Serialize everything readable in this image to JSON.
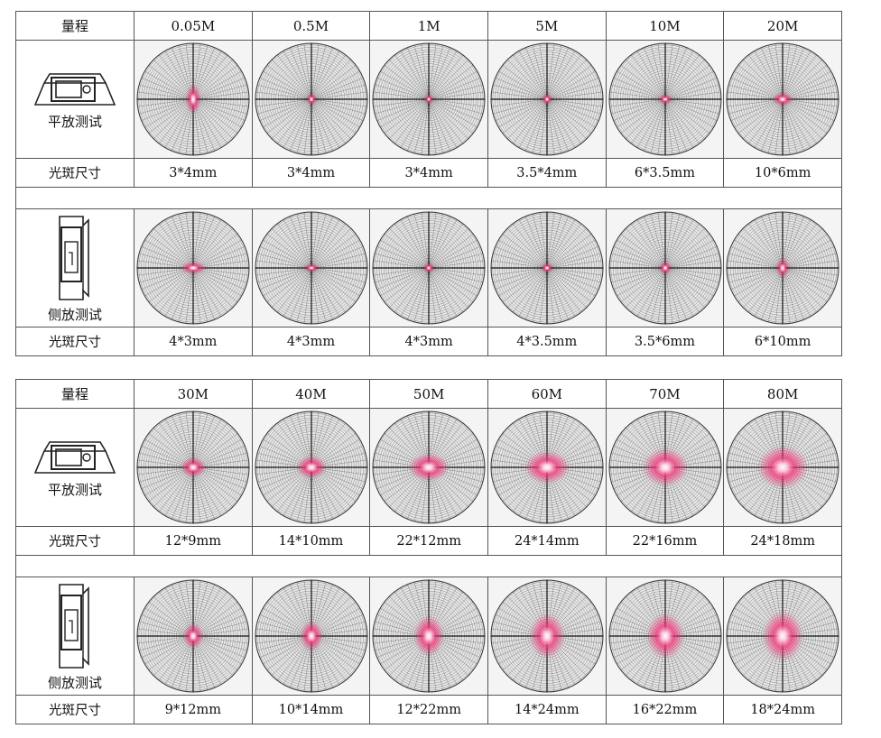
{
  "blocks": [
    {
      "range_label": "量程",
      "distances": [
        "0.05M",
        "0.5M",
        "1M",
        "5M",
        "10M",
        "20M"
      ],
      "flat": {
        "mode_label": "平放测试",
        "size_label": "光斑尺寸",
        "sizes": [
          "3*4mm",
          "3*4mm",
          "3*4mm",
          "3.5*4mm",
          "6*3.5mm",
          "10*6mm"
        ]
      },
      "side": {
        "mode_label": "侧放测试",
        "size_label": "光斑尺寸",
        "sizes": [
          "4*3mm",
          "4*3mm",
          "4*3mm",
          "4*3.5mm",
          "3.5*6mm",
          "6*10mm"
        ]
      }
    },
    {
      "range_label": "量程",
      "distances": [
        "30M",
        "40M",
        "50M",
        "60M",
        "70M",
        "80M"
      ],
      "flat": {
        "mode_label": "平放测试",
        "size_label": "光斑尺寸",
        "sizes": [
          "12*9mm",
          "14*10mm",
          "22*12mm",
          "24*14mm",
          "22*16mm",
          "24*18mm"
        ]
      },
      "side": {
        "mode_label": "侧放测试",
        "size_label": "光斑尺寸",
        "sizes": [
          "9*12mm",
          "10*14mm",
          "12*22mm",
          "14*24mm",
          "16*22mm",
          "18*24mm"
        ]
      }
    }
  ],
  "spots": {
    "flat": [
      [
        0.6,
        1.2
      ],
      [
        0.4,
        0.5
      ],
      [
        0.35,
        0.4
      ],
      [
        0.4,
        0.45
      ],
      [
        0.55,
        0.4
      ],
      [
        0.8,
        0.55
      ],
      [
        1.0,
        0.8
      ],
      [
        1.2,
        0.9
      ],
      [
        1.6,
        1.1
      ],
      [
        1.8,
        1.3
      ],
      [
        1.8,
        1.5
      ],
      [
        2.0,
        1.7
      ]
    ],
    "side": [
      [
        1.0,
        0.5
      ],
      [
        0.6,
        0.35
      ],
      [
        0.45,
        0.4
      ],
      [
        0.5,
        0.4
      ],
      [
        0.5,
        0.55
      ],
      [
        0.55,
        0.8
      ],
      [
        0.8,
        1.0
      ],
      [
        0.9,
        1.2
      ],
      [
        1.2,
        1.6
      ],
      [
        1.4,
        1.8
      ],
      [
        1.5,
        1.8
      ],
      [
        1.6,
        2.0
      ]
    ]
  },
  "colors": {
    "laser": "#ff2d7a",
    "grid": "#333333",
    "border": "#555555"
  },
  "icons": {
    "flat": "device-flat-icon",
    "side": "device-side-icon"
  }
}
